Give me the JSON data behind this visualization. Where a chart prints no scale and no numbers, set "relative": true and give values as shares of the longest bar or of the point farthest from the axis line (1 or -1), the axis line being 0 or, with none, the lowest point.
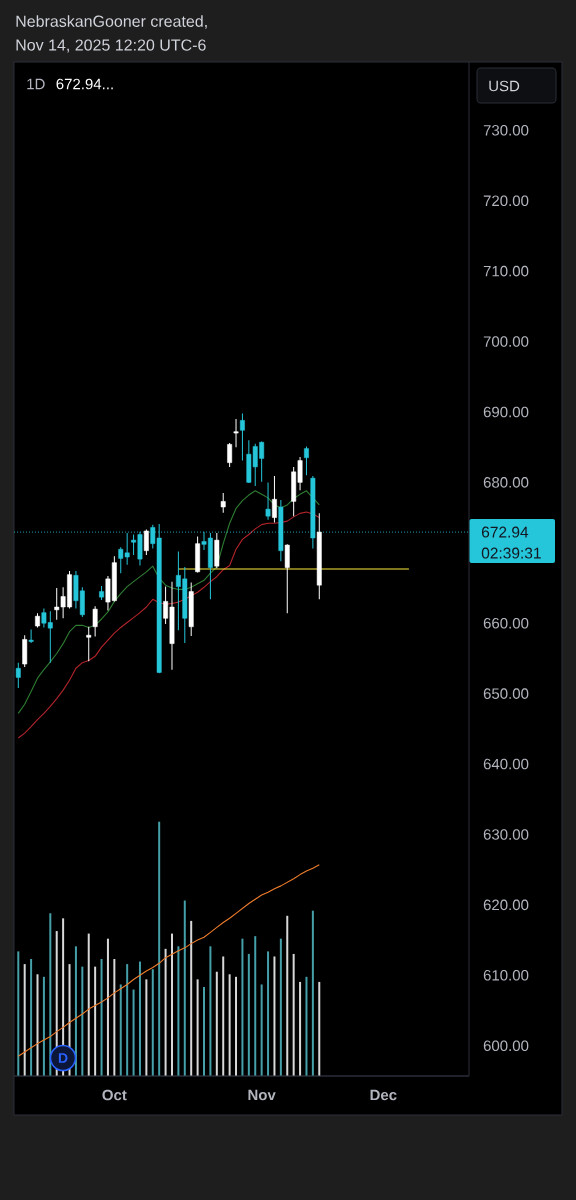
{
  "chart_data": [
    {
      "type": "candlestick",
      "title": "1D",
      "subtitle": "672.94...",
      "categories": [
        null,
        null,
        null,
        null,
        null,
        null,
        null,
        null,
        null,
        null,
        null,
        null,
        null,
        null,
        null,
        "Oct",
        null,
        null,
        null,
        null,
        null,
        null,
        null,
        null,
        null,
        null,
        null,
        null,
        null,
        null,
        null,
        null,
        null,
        null,
        null,
        null,
        null,
        null,
        "Nov",
        null,
        null,
        null,
        null,
        null,
        null,
        null,
        null,
        null,
        null,
        null,
        null,
        null,
        null,
        null,
        null,
        null,
        null,
        "Dec",
        null,
        null,
        null,
        null,
        null,
        null,
        null,
        null,
        null,
        null,
        null,
        null,
        null
      ],
      "ohlc": [
        [
          653.6,
          654.4,
          650.8,
          652.3
        ],
        [
          654.2,
          658.3,
          653.8,
          657.7
        ],
        [
          657.6,
          659.1,
          657.2,
          657.4
        ],
        [
          659.6,
          661.4,
          659.4,
          661.0
        ],
        [
          661.5,
          662.1,
          659.4,
          660.0
        ],
        [
          660.1,
          661.7,
          654.4,
          659.3
        ],
        [
          661.9,
          665.0,
          660.5,
          662.3
        ],
        [
          662.3,
          665.1,
          660.7,
          663.8
        ],
        [
          662.3,
          667.4,
          662.1,
          666.9
        ],
        [
          666.8,
          667.4,
          662.1,
          663.2
        ],
        [
          664.6,
          665.1,
          660.9,
          661.2
        ],
        [
          658.0,
          659.5,
          654.6,
          658.3
        ],
        [
          659.5,
          662.4,
          658.1,
          662.0
        ],
        [
          664.5,
          665.3,
          663.3,
          663.7
        ],
        [
          663.0,
          666.7,
          661.8,
          666.3
        ],
        [
          663.2,
          669.5,
          663.1,
          668.6
        ],
        [
          670.5,
          670.8,
          667.1,
          669.2
        ],
        [
          670.0,
          672.8,
          668.3,
          669.4
        ],
        [
          671.8,
          672.6,
          669.7,
          671.5
        ],
        [
          672.6,
          673.0,
          668.2,
          669.1
        ],
        [
          670.3,
          673.3,
          669.7,
          673.1
        ],
        [
          673.6,
          674.0,
          670.6,
          671.3
        ],
        [
          672.1,
          674.1,
          652.9,
          653.0
        ],
        [
          660.7,
          665.2,
          659.9,
          663.1
        ],
        [
          657.1,
          665.9,
          653.4,
          662.3
        ],
        [
          666.8,
          670.2,
          659.0,
          665.2
        ],
        [
          666.3,
          668.0,
          657.2,
          660.7
        ],
        [
          659.5,
          665.8,
          658.2,
          664.5
        ],
        [
          667.3,
          672.3,
          667.2,
          671.3
        ],
        [
          671.6,
          673.0,
          670.4,
          671.2
        ],
        [
          672.1,
          672.8,
          663.4,
          667.9
        ],
        [
          668.1,
          672.8,
          667.8,
          671.8
        ],
        [
          676.5,
          678.5,
          675.7,
          677.3
        ],
        [
          682.8,
          685.6,
          682.2,
          685.4
        ],
        [
          687.0,
          689.0,
          685.0,
          687.2
        ],
        [
          688.8,
          689.8,
          683.1,
          687.4
        ],
        [
          684.0,
          686.0,
          679.9,
          680.0
        ],
        [
          685.1,
          685.5,
          679.5,
          682.2
        ],
        [
          685.7,
          685.8,
          680.1,
          683.4
        ],
        [
          676.2,
          680.0,
          674.7,
          675.2
        ],
        [
          675.0,
          680.9,
          674.3,
          677.6
        ],
        [
          676.5,
          677.5,
          668.8,
          670.3
        ],
        [
          667.9,
          671.2,
          661.4,
          671.1
        ],
        [
          677.3,
          682.2,
          675.2,
          681.5
        ],
        [
          680.0,
          683.6,
          678.9,
          683.1
        ],
        [
          684.8,
          685.1,
          681.0,
          683.5
        ],
        [
          680.6,
          680.9,
          670.6,
          672.1
        ],
        [
          665.4,
          675.6,
          663.4,
          672.94
        ],
        null,
        null,
        null,
        null,
        null,
        null,
        null,
        null,
        null,
        null,
        null,
        null,
        null,
        null,
        null,
        null,
        null,
        null,
        null,
        null,
        null,
        null,
        null
      ],
      "colors": [
        "#26c6da",
        "#ffffff",
        "#26c6da",
        "#ffffff",
        "#26c6da",
        "#26c6da",
        "#ffffff",
        "#ffffff",
        "#ffffff",
        "#26c6da",
        "#26c6da",
        "#ffffff",
        "#ffffff",
        "#26c6da",
        "#ffffff",
        "#ffffff",
        "#26c6da",
        "#26c6da",
        "#26c6da",
        "#26c6da",
        "#ffffff",
        "#26c6da",
        "#26c6da",
        "#ffffff",
        "#ffffff",
        "#26c6da",
        "#26c6da",
        "#ffffff",
        "#ffffff",
        "#26c6da",
        "#26c6da",
        "#ffffff",
        "#ffffff",
        "#ffffff",
        "#ffffff",
        "#26c6da",
        "#26c6da",
        "#26c6da",
        "#26c6da",
        "#26c6da",
        "#ffffff",
        "#26c6da",
        "#ffffff",
        "#ffffff",
        "#ffffff",
        "#26c6da",
        "#26c6da",
        "#ffffff",
        null,
        null,
        null,
        null,
        null,
        null,
        null,
        null,
        null,
        null,
        null,
        null,
        null,
        null,
        null,
        null,
        null,
        null,
        null,
        null,
        null,
        null,
        null
      ],
      "ylim": [
        595.7,
        739.7
      ],
      "yticks": [
        {
          "value": 600,
          "label": "600.00"
        },
        {
          "value": 610,
          "label": "610.00"
        },
        {
          "value": 620,
          "label": "620.00"
        },
        {
          "value": 630,
          "label": "630.00"
        },
        {
          "value": 640,
          "label": "640.00"
        },
        {
          "value": 650,
          "label": "650.00"
        },
        {
          "value": 660,
          "label": "660.00"
        },
        {
          "value": 680,
          "label": "680.00"
        },
        {
          "value": 690,
          "label": "690.00"
        },
        {
          "value": 700,
          "label": "700.00"
        },
        {
          "value": 710,
          "label": "710.00"
        },
        {
          "value": 720,
          "label": "720.00"
        },
        {
          "value": 730,
          "label": "730.00"
        }
      ],
      "series": [
        {
          "type": "line",
          "color": "#2e7d32",
          "values": [
            647.2,
            648.5,
            650.3,
            652.2,
            653.4,
            654.5,
            655.7,
            657.1,
            658.8,
            659.7,
            659.7,
            659.4,
            659.7,
            660.6,
            661.6,
            663.1,
            664.2,
            665.2,
            665.9,
            666.6,
            667.3,
            668.1,
            666.4,
            665.4,
            665.0,
            664.8,
            664.8,
            665.1,
            665.6,
            666.1,
            667.1,
            668.0,
            671.3,
            674.2,
            676.3,
            677.4,
            678.2,
            678.8,
            678.3,
            677.8,
            676.8,
            676.4,
            676.8,
            677.7,
            678.3,
            678.8,
            677.8,
            676.8,
            null,
            null,
            null,
            null,
            null,
            null,
            null,
            null,
            null,
            null,
            null,
            null,
            null,
            null,
            null,
            null,
            null,
            null,
            null,
            null,
            null,
            null,
            null
          ]
        },
        {
          "type": "line",
          "color": "#b2242a",
          "values": [
            643.7,
            644.4,
            645.3,
            646.3,
            647.2,
            648.2,
            649.3,
            650.5,
            651.9,
            653.6,
            654.4,
            654.7,
            655.3,
            656.6,
            657.6,
            658.6,
            659.4,
            660.1,
            660.8,
            661.5,
            662.3,
            663.4,
            662.9,
            662.7,
            662.8,
            663.0,
            663.4,
            663.9,
            664.4,
            665.1,
            665.9,
            666.6,
            667.6,
            668.2,
            670.5,
            671.9,
            672.6,
            673.4,
            674.0,
            674.2,
            674.2,
            674.3,
            674.5,
            675.1,
            675.6,
            675.8,
            675.5,
            675.0,
            null,
            null,
            null,
            null,
            null,
            null,
            null,
            null,
            null,
            null,
            null,
            null,
            null,
            null,
            null,
            null,
            null,
            null,
            null,
            null,
            null,
            null,
            null
          ]
        },
        {
          "type": "line",
          "color": "#ef7d2c",
          "values": [
            598.5,
            599.1,
            599.7,
            600.3,
            600.8,
            601.3,
            602.0,
            602.6,
            603.3,
            603.9,
            604.5,
            605.2,
            605.7,
            606.2,
            606.8,
            607.5,
            608.1,
            608.7,
            609.4,
            610.0,
            610.6,
            611.1,
            611.7,
            612.5,
            613.0,
            613.5,
            613.9,
            614.5,
            615.0,
            615.4,
            616.1,
            616.8,
            617.5,
            618.1,
            618.8,
            619.5,
            620.2,
            620.8,
            621.4,
            621.8,
            622.3,
            622.7,
            623.2,
            623.7,
            624.3,
            624.8,
            625.2,
            625.7,
            null,
            null,
            null,
            null,
            null,
            null,
            null,
            null,
            null,
            null,
            null,
            null,
            null,
            null,
            null,
            null,
            null,
            null,
            null,
            null,
            null,
            null,
            null
          ]
        },
        {
          "type": "line",
          "color": "#ffeb3b",
          "values": [
            null,
            null,
            null,
            null,
            null,
            null,
            null,
            null,
            null,
            null,
            null,
            null,
            null,
            null,
            null,
            null,
            null,
            null,
            null,
            null,
            null,
            null,
            null,
            null,
            null,
            667.7,
            667.7,
            667.7,
            667.7,
            667.7,
            667.7,
            667.7,
            667.7,
            667.7,
            667.7,
            667.7,
            667.7,
            667.7,
            667.7,
            667.7,
            667.7,
            667.7,
            667.7,
            667.7,
            667.7,
            667.7,
            667.7,
            667.7,
            667.7,
            667.7,
            667.7,
            667.7,
            667.7,
            667.7,
            667.7,
            667.7,
            667.7,
            667.7,
            667.7,
            667.7,
            667.7,
            667.7,
            null,
            null,
            null,
            null,
            null,
            null,
            null,
            null,
            null
          ]
        }
      ],
      "ref_lines": [
        {
          "axis": "y",
          "value": 672.94,
          "label": "672.94",
          "color": "#26c6da",
          "line_style": "dotted"
        }
      ],
      "annotations": [
        "NebraskanGooner created,",
        "Nov 14, 2025 12:20 UTC-6",
        "USD",
        "02:39:31",
        "D"
      ]
    },
    {
      "type": "bar",
      "relative": true,
      "categories": [
        null,
        null,
        null,
        null,
        null,
        null,
        null,
        null,
        null,
        null,
        null,
        null,
        null,
        null,
        null,
        null,
        null,
        null,
        null,
        null,
        null,
        null,
        null,
        null,
        null,
        null,
        null,
        null,
        null,
        null,
        null,
        null,
        null,
        null,
        null,
        null,
        null,
        null,
        null,
        null,
        null,
        null,
        null,
        null,
        null,
        null,
        null,
        null,
        null,
        null,
        null,
        null,
        null,
        null,
        null,
        null,
        null,
        null,
        null,
        null,
        null,
        null,
        null,
        null,
        null,
        null,
        null,
        null,
        null,
        null,
        null
      ],
      "values": [
        0.49,
        0.44,
        0.46,
        0.4,
        0.39,
        0.64,
        0.57,
        0.62,
        0.44,
        0.51,
        0.43,
        0.56,
        0.43,
        0.46,
        0.54,
        0.46,
        0.36,
        0.44,
        0.34,
        0.45,
        0.38,
        0.42,
        1,
        0.5,
        0.56,
        0.51,
        0.69,
        0.61,
        0.38,
        0.35,
        0.51,
        0.41,
        0.47,
        0.4,
        0.39,
        0.54,
        0.48,
        0.55,
        0.36,
        0.49,
        0.47,
        0.54,
        0.63,
        0.48,
        0.37,
        0.39,
        0.65,
        0.37,
        null,
        null,
        null,
        null,
        null,
        null,
        null,
        null,
        null,
        null,
        null,
        null,
        null,
        null,
        null,
        null,
        null,
        null,
        null,
        null,
        null,
        null,
        null
      ],
      "colors": [
        "#45a0aa",
        "#d8d8d8",
        "#45a0aa",
        "#d8d8d8",
        "#45a0aa",
        "#45a0aa",
        "#d8d8d8",
        "#d8d8d8",
        "#d8d8d8",
        "#45a0aa",
        "#45a0aa",
        "#d8d8d8",
        "#d8d8d8",
        "#45a0aa",
        "#d8d8d8",
        "#d8d8d8",
        "#45a0aa",
        "#45a0aa",
        "#45a0aa",
        "#45a0aa",
        "#d8d8d8",
        "#45a0aa",
        "#45a0aa",
        "#d8d8d8",
        "#d8d8d8",
        "#45a0aa",
        "#45a0aa",
        "#d8d8d8",
        "#d8d8d8",
        "#45a0aa",
        "#45a0aa",
        "#d8d8d8",
        "#d8d8d8",
        "#d8d8d8",
        "#d8d8d8",
        "#45a0aa",
        "#45a0aa",
        "#45a0aa",
        "#45a0aa",
        "#45a0aa",
        "#d8d8d8",
        "#45a0aa",
        "#d8d8d8",
        "#d8d8d8",
        "#d8d8d8",
        "#45a0aa",
        "#45a0aa",
        "#d8d8d8",
        null,
        null,
        null,
        null,
        null,
        null,
        null,
        null,
        null,
        null,
        null,
        null,
        null,
        null,
        null,
        null,
        null,
        null,
        null,
        null,
        null,
        null,
        null
      ]
    }
  ]
}
